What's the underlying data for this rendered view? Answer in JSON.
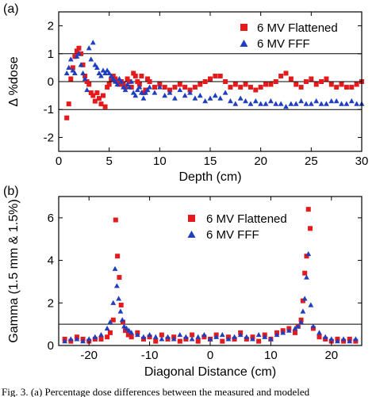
{
  "chart_data": [
    {
      "type": "scatter",
      "panel_label": "(a)",
      "xlabel": "Depth (cm)",
      "ylabel": "Δ %dose",
      "xlim": [
        0,
        30
      ],
      "ylim": [
        -2.5,
        2.5
      ],
      "xticks": [
        0,
        5,
        10,
        15,
        20,
        25,
        30
      ],
      "yticks": [
        -2,
        -1,
        0,
        1,
        2
      ],
      "ref_lines": [
        1,
        0,
        -1
      ],
      "legend_position": "top-right",
      "series": [
        {
          "name": "6 MV Flattened",
          "marker": "square",
          "color": "#e41a1c",
          "x": [
            0.8,
            1.0,
            1.2,
            1.4,
            1.6,
            1.8,
            2.0,
            2.2,
            2.4,
            2.6,
            2.8,
            3.0,
            3.2,
            3.4,
            3.6,
            3.8,
            4.0,
            4.2,
            4.4,
            4.6,
            4.8,
            5.0,
            5.2,
            5.4,
            5.6,
            5.8,
            6.0,
            6.2,
            6.4,
            6.6,
            6.8,
            7.0,
            7.2,
            7.4,
            7.6,
            7.8,
            8.0,
            8.2,
            8.4,
            8.6,
            8.8,
            9.0,
            9.5,
            10.0,
            10.5,
            11.0,
            11.5,
            12.0,
            12.5,
            13.0,
            13.5,
            14.0,
            14.5,
            15.0,
            15.5,
            16.0,
            16.5,
            17.0,
            17.5,
            18.0,
            18.5,
            19.0,
            19.5,
            20.0,
            20.5,
            21.0,
            21.5,
            22.0,
            22.5,
            23.0,
            23.5,
            24.0,
            24.5,
            25.0,
            25.5,
            26.0,
            26.5,
            27.0,
            27.5,
            28.0,
            28.5,
            29.0,
            29.5,
            30.0
          ],
          "values": [
            -1.3,
            -0.8,
            0.1,
            0.5,
            0.9,
            1.1,
            1.2,
            1.0,
            0.6,
            0.2,
            0.0,
            -0.1,
            -0.4,
            -0.5,
            -0.7,
            -0.4,
            -0.6,
            -0.8,
            -0.5,
            -0.9,
            -0.2,
            -0.1,
            0.1,
            0.2,
            0.1,
            0.0,
            -0.1,
            0.0,
            -0.1,
            -0.2,
            0.1,
            0.0,
            -0.2,
            0.3,
            0.2,
            0.0,
            -0.1,
            0.2,
            -0.4,
            -0.3,
            0.1,
            0.0,
            -0.2,
            -0.1,
            -0.2,
            -0.3,
            -0.2,
            -0.1,
            -0.2,
            -0.3,
            -0.2,
            -0.1,
            0.0,
            0.1,
            0.2,
            0.2,
            0.0,
            -0.2,
            -0.1,
            -0.2,
            -0.1,
            -0.2,
            -0.3,
            -0.2,
            -0.1,
            -0.1,
            0.0,
            0.2,
            0.3,
            0.1,
            -0.1,
            -0.2,
            0.0,
            0.1,
            -0.1,
            0.0,
            0.1,
            -0.1,
            -0.2,
            -0.1,
            -0.2,
            -0.2,
            -0.1,
            0.0
          ]
        },
        {
          "name": "6 MV FFF",
          "marker": "triangle",
          "color": "#1f3fbf",
          "x": [
            0.8,
            1.0,
            1.2,
            1.4,
            1.6,
            1.8,
            2.0,
            2.2,
            2.4,
            2.6,
            2.8,
            3.0,
            3.2,
            3.4,
            3.6,
            3.8,
            4.0,
            4.2,
            4.4,
            4.6,
            4.8,
            5.0,
            5.2,
            5.4,
            5.6,
            5.8,
            6.0,
            6.2,
            6.4,
            6.6,
            6.8,
            7.0,
            7.2,
            7.4,
            7.6,
            7.8,
            8.0,
            8.2,
            8.4,
            8.6,
            8.8,
            9.0,
            9.5,
            10.0,
            10.5,
            11.0,
            11.5,
            12.0,
            12.5,
            13.0,
            13.5,
            14.0,
            14.5,
            15.0,
            15.5,
            16.0,
            16.5,
            17.0,
            17.5,
            18.0,
            18.5,
            19.0,
            19.5,
            20.0,
            20.5,
            21.0,
            21.5,
            22.0,
            22.5,
            23.0,
            23.5,
            24.0,
            24.5,
            25.0,
            25.5,
            26.0,
            26.5,
            27.0,
            27.5,
            28.0,
            28.5,
            29.0,
            29.5,
            30.0
          ],
          "values": [
            0.3,
            0.5,
            0.8,
            0.4,
            0.3,
            0.9,
            1.0,
            0.6,
            0.3,
            0.1,
            -0.3,
            1.2,
            0.8,
            1.4,
            0.6,
            0.5,
            0.3,
            0.2,
            0.4,
            0.3,
            0.4,
            0.3,
            0.2,
            0.1,
            0.0,
            -0.1,
            0.1,
            0.0,
            -0.2,
            -0.3,
            -0.1,
            -0.2,
            0.0,
            -0.4,
            -0.5,
            -0.3,
            -0.2,
            -0.4,
            -0.6,
            -0.4,
            -0.3,
            -0.2,
            -0.4,
            -0.2,
            -0.5,
            -0.4,
            -0.6,
            -0.3,
            -0.5,
            -0.4,
            -0.6,
            -0.5,
            -0.7,
            -0.6,
            -0.5,
            -0.6,
            -0.4,
            -0.7,
            -0.8,
            -0.6,
            -0.7,
            -0.8,
            -0.7,
            -0.8,
            -0.8,
            -0.7,
            -0.8,
            -0.8,
            -0.9,
            -0.8,
            -0.8,
            -0.7,
            -0.8,
            -0.8,
            -0.7,
            -0.8,
            -0.8,
            -0.7,
            -0.7,
            -0.8,
            -0.8,
            -0.7,
            -0.8,
            -0.8
          ]
        }
      ]
    },
    {
      "type": "scatter",
      "panel_label": "(b)",
      "xlabel": "Diagonal Distance (cm)",
      "ylabel": "Gamma (1.5 mm & 1.5%)",
      "xlim": [
        -25,
        25
      ],
      "ylim": [
        0,
        7
      ],
      "xticks": [
        -20,
        -10,
        0,
        10,
        20
      ],
      "yticks": [
        0,
        2,
        4,
        6
      ],
      "ref_lines": [
        1
      ],
      "legend_position": "top-center",
      "series": [
        {
          "name": "6 MV Flattened",
          "marker": "square",
          "color": "#e41a1c",
          "x": [
            -24,
            -23,
            -22,
            -21,
            -20,
            -19,
            -18,
            -17,
            -16.5,
            -16,
            -15.6,
            -15.3,
            -15,
            -14.7,
            -14.4,
            -14,
            -13.5,
            -13,
            -12,
            -11,
            -10,
            -9,
            -8,
            -7,
            -6,
            -5,
            -4,
            -3,
            -2,
            -1,
            0,
            1,
            2,
            3,
            4,
            5,
            6,
            7,
            8,
            9,
            10,
            11,
            12,
            13,
            14,
            14.5,
            15,
            15.3,
            15.6,
            15.9,
            16.2,
            16.5,
            17,
            18,
            19,
            20,
            21,
            22,
            23,
            24
          ],
          "values": [
            0.3,
            0.2,
            0.4,
            0.3,
            0.2,
            0.3,
            0.3,
            0.4,
            0.6,
            1.2,
            5.9,
            4.2,
            3.2,
            1.9,
            1.1,
            0.7,
            0.5,
            0.4,
            0.6,
            0.3,
            0.4,
            0.2,
            0.5,
            0.3,
            0.4,
            0.2,
            0.3,
            0.5,
            0.2,
            0.4,
            0.3,
            0.5,
            0.2,
            0.4,
            0.3,
            0.6,
            0.3,
            0.4,
            0.2,
            0.5,
            0.3,
            0.6,
            0.7,
            0.8,
            0.6,
            0.9,
            1.2,
            2.1,
            3.4,
            4.2,
            6.4,
            5.5,
            0.8,
            0.4,
            0.3,
            0.2,
            0.3,
            0.2,
            0.3,
            0.2
          ]
        },
        {
          "name": "6 MV FFF",
          "marker": "triangle",
          "color": "#1f3fbf",
          "x": [
            -24,
            -23,
            -22,
            -21,
            -20,
            -19,
            -18,
            -17,
            -16.5,
            -16,
            -15.7,
            -15.4,
            -15.1,
            -14.8,
            -14.5,
            -14.2,
            -13.8,
            -13.4,
            -13,
            -12,
            -11,
            -10,
            -9,
            -8,
            -7,
            -6,
            -5,
            -4,
            -3,
            -2,
            -1,
            0,
            1,
            2,
            3,
            4,
            5,
            6,
            7,
            8,
            9,
            10,
            11,
            12,
            13,
            14,
            14.5,
            15,
            15.3,
            15.6,
            15.9,
            16.2,
            16.6,
            17,
            18,
            19,
            20,
            21,
            22,
            23,
            24
          ],
          "values": [
            0.2,
            0.3,
            0.3,
            0.2,
            0.3,
            0.4,
            0.5,
            0.8,
            1.1,
            2.0,
            3.6,
            2.8,
            2.2,
            1.6,
            1.2,
            0.9,
            0.8,
            0.7,
            0.6,
            0.5,
            0.4,
            0.5,
            0.4,
            0.3,
            0.4,
            0.3,
            0.5,
            0.4,
            0.3,
            0.4,
            0.5,
            0.3,
            0.4,
            0.5,
            0.3,
            0.4,
            0.5,
            0.4,
            0.3,
            0.5,
            0.4,
            0.3,
            0.5,
            0.6,
            0.7,
            0.8,
            0.9,
            1.1,
            1.6,
            2.2,
            3.2,
            4.3,
            1.9,
            0.9,
            0.6,
            0.4,
            0.3,
            0.2,
            0.3,
            0.2,
            0.3
          ]
        }
      ]
    }
  ],
  "caption": "Fig. 3.  (a) Percentage dose differences between the measured and modeled"
}
